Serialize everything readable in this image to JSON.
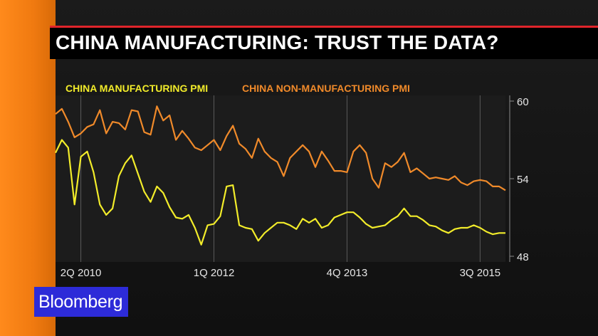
{
  "headline": "CHINA MANUFACTURING: TRUST THE DATA?",
  "logo": "Bloomberg",
  "colors": {
    "manufacturing": "#f2ec2a",
    "non_manufacturing": "#f08a2a",
    "accent_rule": "#e0242b",
    "logo_bg": "#2d2bd8"
  },
  "chart_data": {
    "type": "line",
    "title": "",
    "xlabel": "",
    "ylabel": "",
    "ylim": [
      48,
      60
    ],
    "y_ticks": [
      60,
      54,
      48
    ],
    "x_tick_labels": [
      {
        "label": "2Q 2010",
        "x": 2010.25
      },
      {
        "label": "1Q 2012",
        "x": 2012.0
      },
      {
        "label": "4Q 2013",
        "x": 2013.75
      },
      {
        "label": "3Q 2015",
        "x": 2015.5
      }
    ],
    "x_start": 2009.917,
    "x_step": 0.08333,
    "grid": "vertical",
    "legend": "top-left",
    "series": [
      {
        "name": "CHINA MANUFACTURING PMI",
        "values": [
          56.0,
          57.0,
          56.4,
          52.0,
          55.7,
          56.1,
          54.5,
          52.0,
          51.2,
          51.7,
          54.2,
          55.2,
          55.8,
          54.4,
          53.0,
          52.2,
          53.4,
          52.9,
          51.8,
          51.0,
          50.9,
          51.2,
          50.2,
          48.9,
          50.4,
          50.5,
          51.1,
          53.4,
          53.5,
          50.4,
          50.2,
          50.1,
          49.2,
          49.8,
          50.2,
          50.6,
          50.6,
          50.4,
          50.1,
          50.9,
          50.6,
          50.9,
          50.2,
          50.4,
          51.0,
          51.2,
          51.4,
          51.4,
          51.0,
          50.5,
          50.2,
          50.3,
          50.4,
          50.8,
          51.1,
          51.7,
          51.1,
          51.1,
          50.8,
          50.4,
          50.3,
          50.0,
          49.8,
          50.1,
          50.2,
          50.2,
          50.4,
          50.2,
          49.9,
          49.7,
          49.8,
          49.8
        ]
      },
      {
        "name": "CHINA NON-MANUFACTURING PMI",
        "values": [
          59.0,
          59.4,
          58.4,
          57.2,
          57.5,
          58.0,
          58.2,
          59.3,
          57.5,
          58.4,
          58.3,
          57.8,
          59.3,
          59.2,
          57.6,
          57.4,
          59.6,
          58.5,
          58.9,
          57.0,
          57.7,
          57.1,
          56.4,
          56.2,
          56.6,
          57.0,
          56.2,
          57.3,
          58.1,
          56.7,
          56.3,
          55.6,
          57.1,
          56.1,
          55.6,
          55.3,
          54.2,
          55.6,
          56.1,
          56.6,
          56.1,
          54.9,
          56.1,
          55.4,
          54.6,
          54.6,
          54.5,
          56.1,
          56.6,
          56.0,
          54.0,
          53.3,
          55.2,
          54.9,
          55.3,
          56.0,
          54.5,
          54.8,
          54.4,
          54.0,
          54.1,
          54.0,
          53.9,
          54.2,
          53.7,
          53.5,
          53.8,
          53.9,
          53.8,
          53.4,
          53.4,
          53.1
        ]
      }
    ]
  }
}
